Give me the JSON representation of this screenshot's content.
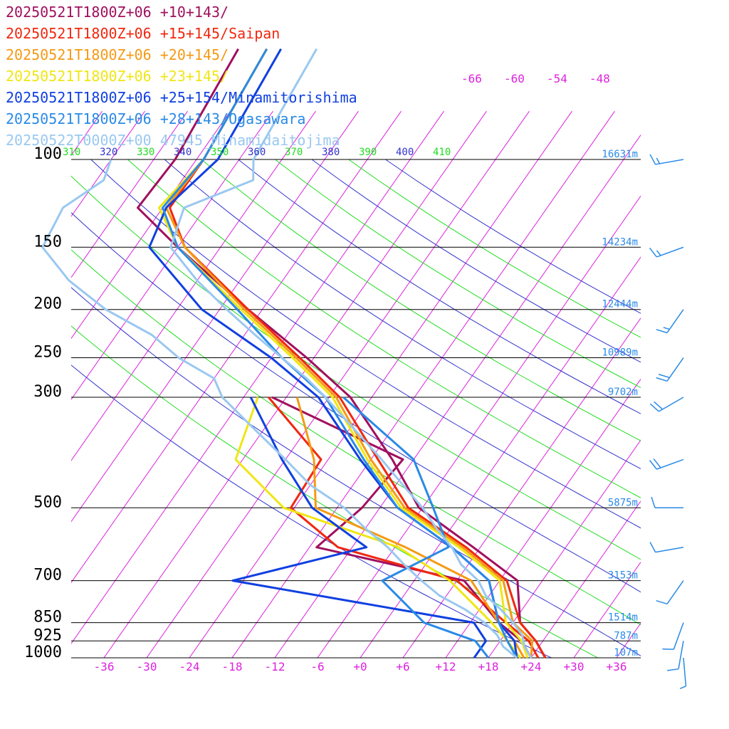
{
  "legend": [
    {
      "label": "20250521T1800Z+06 +10+143/",
      "color": "#a0105e"
    },
    {
      "label": "20250521T1800Z+06 +15+145/Saipan",
      "color": "#f02810"
    },
    {
      "label": "20250521T1800Z+06 +20+145/",
      "color": "#f59a14"
    },
    {
      "label": "20250521T1800Z+06 +23+145/",
      "color": "#f0e614"
    },
    {
      "label": "20250521T1800Z+06 +25+154/Minamitorishima",
      "color": "#1040e0"
    },
    {
      "label": "20250521T1800Z+06 +28+143/Ogasawara",
      "color": "#2a8ae6"
    },
    {
      "label": "20250522T0000Z+00 47945_Minamidaitojima",
      "color": "#9ac8f0"
    }
  ],
  "chart_data": {
    "type": "line",
    "chart_kind": "skew-T log-P diagram",
    "x_axis": {
      "label": "",
      "range": [
        -39,
        39
      ],
      "ticks": [
        "-36",
        "-30",
        "-24",
        "-18",
        "-12",
        "-6",
        "+0",
        "+6",
        "+12",
        "+18",
        "+24",
        "+30",
        "+36"
      ],
      "tick_values": [
        -36,
        -30,
        -24,
        -18,
        -12,
        -6,
        0,
        6,
        12,
        18,
        24,
        30,
        36
      ]
    },
    "y_axis": {
      "label": "",
      "scale": "log",
      "reversed": true,
      "range": [
        1000,
        100
      ]
    },
    "pressure_levels": [
      {
        "p": 100,
        "label": "100",
        "height": "16631m"
      },
      {
        "p": 150,
        "label": "150",
        "height": "14234m"
      },
      {
        "p": 200,
        "label": "200",
        "height": "12444m"
      },
      {
        "p": 250,
        "label": "250",
        "height": "10989m"
      },
      {
        "p": 300,
        "label": "300",
        "height": "9702m"
      },
      {
        "p": 500,
        "label": "500",
        "height": "5875m"
      },
      {
        "p": 700,
        "label": "700",
        "height": "3153m"
      },
      {
        "p": 850,
        "label": "850",
        "height": "1514m"
      },
      {
        "p": 925,
        "label": "925",
        "height": "787m"
      },
      {
        "p": 1000,
        "label": "1000",
        "height": "107m"
      }
    ],
    "theta_e_labels": [
      {
        "label": "310",
        "color": "#22dd22"
      },
      {
        "label": "320",
        "color": "#3333cc"
      },
      {
        "label": "330",
        "color": "#22dd22"
      },
      {
        "label": "340",
        "color": "#3333cc"
      },
      {
        "label": "350",
        "color": "#22dd22"
      },
      {
        "label": "360",
        "color": "#3333cc"
      },
      {
        "label": "370",
        "color": "#22dd22"
      },
      {
        "label": "380",
        "color": "#3333cc"
      },
      {
        "label": "390",
        "color": "#22dd22"
      },
      {
        "label": "400",
        "color": "#3333cc"
      },
      {
        "label": "410",
        "color": "#22dd22"
      }
    ],
    "isotherm_top_labels": [
      "-66",
      "-60",
      "-54",
      "-48"
    ],
    "colors": {
      "isotherm": "#dd22dd",
      "theta_e_a": "#22dd22",
      "theta_e_b": "#3333cc",
      "isobar": "#000000",
      "height_label": "#2a8ae6"
    },
    "series": [
      {
        "name": "20250521T1800Z+06 +10+143/",
        "color": "#a0105e",
        "p": [
          1000,
          925,
          850,
          700,
          600,
          500,
          400,
          300,
          250,
          200,
          150,
          125,
          100
        ],
        "t": [
          26,
          23,
          19,
          14.5,
          5,
          -6.5,
          -15,
          -27,
          -37,
          -50,
          -66,
          -75.5,
          -75
        ],
        "td": [
          24,
          21,
          16,
          7,
          -17,
          -14.5,
          -13.5,
          -38
        ]
      },
      {
        "name": "20250521T1800Z+06 +15+145/Saipan",
        "color": "#f02810",
        "p": [
          1000,
          925,
          850,
          700,
          600,
          500,
          400,
          300,
          250,
          200,
          150,
          125,
          100
        ],
        "t": [
          26,
          23,
          19,
          13,
          4,
          -8,
          -17,
          -28.5,
          -38,
          -50,
          -65,
          -71,
          -71
        ],
        "td": [
          25,
          22,
          17,
          6,
          -14,
          -24.5,
          -25,
          -38.5
        ]
      },
      {
        "name": "20250521T1800Z+06 +20+145/",
        "color": "#f59a14",
        "p": [
          1000,
          925,
          850,
          700,
          600,
          500,
          400,
          300,
          250,
          200,
          150,
          125,
          100
        ],
        "t": [
          24,
          22.5,
          18,
          12.5,
          3.5,
          -8.5,
          -18,
          -29,
          -38.5,
          -50.5,
          -65,
          -71.5,
          -71
        ],
        "td": [
          23,
          20,
          16,
          8,
          -4.5,
          -21,
          -26,
          -34.5
        ]
      },
      {
        "name": "20250521T1800Z+06 +23+145/",
        "color": "#f0e614",
        "p": [
          1000,
          925,
          850,
          700,
          600,
          500,
          400,
          300,
          250,
          200,
          150,
          125,
          100
        ],
        "t": [
          23.5,
          21,
          17,
          12,
          3,
          -9,
          -18.5,
          -29.5,
          -39,
          -51,
          -66,
          -72.5,
          -71
        ],
        "td": [
          22.5,
          19,
          15,
          5,
          -5.5,
          -25.5,
          -37,
          -40
        ]
      },
      {
        "name": "20250521T1800Z+06 +25+154/Minamitorishima",
        "color": "#1040e0",
        "p": [
          1000,
          925,
          850,
          700,
          600,
          500,
          400,
          300,
          250,
          200,
          150,
          125,
          100
        ],
        "t": [
          22,
          20,
          16,
          10.5,
          2,
          -9.5,
          -19.5,
          -31.5,
          -42,
          -56.5,
          -70,
          -71.5,
          -69
        ],
        "td": [
          16,
          16,
          12.5,
          -25.5,
          -10,
          -21.5,
          -30.5,
          -41
        ]
      },
      {
        "name": "20250521T1800Z+06 +28+143/Ogasawara",
        "color": "#2a8ae6",
        "p": [
          1000,
          925,
          850,
          700,
          600,
          500,
          400,
          300,
          250,
          200,
          150,
          125,
          100
        ],
        "t": [
          22,
          19,
          16,
          10.5,
          2,
          -9.5,
          -19,
          -30.5,
          -40.5,
          -51.5,
          -66,
          -72,
          -71
        ],
        "td": [
          18,
          14.5,
          5.5,
          -4.5,
          1.5,
          -4.5,
          -12,
          -28
        ]
      },
      {
        "name": "20250522T0000Z+00 47945_Minamidaitojima",
        "color": "#9ac8f0",
        "p": [
          1000,
          950,
          900,
          850,
          800,
          750,
          700,
          650,
          600,
          550,
          500,
          450,
          400,
          350,
          300,
          275,
          250,
          225,
          200,
          175,
          150,
          125,
          110,
          100
        ],
        "t": [
          24,
          22,
          20.5,
          18,
          15,
          11.5,
          9,
          5,
          2,
          -2,
          -6,
          -11,
          -16.5,
          -23,
          -30.5,
          -35,
          -40.5,
          -46.5,
          -53,
          -60,
          -67,
          -69,
          -62,
          -64
        ],
        "td": [
          22,
          19,
          17,
          14,
          10,
          5,
          1,
          -3,
          -7,
          -12,
          -17,
          -24,
          -30,
          -37,
          -45,
          -48,
          -55,
          -61,
          -70,
          -78,
          -85,
          -86,
          -83,
          -84
        ]
      }
    ],
    "wind_barbs": [
      {
        "p": 100,
        "dir_deg": 260,
        "speed_kt": 15
      },
      {
        "p": 150,
        "dir_deg": 250,
        "speed_kt": 15
      },
      {
        "p": 200,
        "dir_deg": 215,
        "speed_kt": 15
      },
      {
        "p": 250,
        "dir_deg": 215,
        "speed_kt": 20
      },
      {
        "p": 300,
        "dir_deg": 240,
        "speed_kt": 20
      },
      {
        "p": 400,
        "dir_deg": 250,
        "speed_kt": 20
      },
      {
        "p": 500,
        "dir_deg": 270,
        "speed_kt": 10
      },
      {
        "p": 600,
        "dir_deg": 260,
        "speed_kt": 10
      },
      {
        "p": 700,
        "dir_deg": 215,
        "speed_kt": 10
      },
      {
        "p": 850,
        "dir_deg": 200,
        "speed_kt": 10
      },
      {
        "p": 925,
        "dir_deg": 190,
        "speed_kt": 10
      },
      {
        "p": 1000,
        "dir_deg": 175,
        "speed_kt": 5
      }
    ]
  }
}
